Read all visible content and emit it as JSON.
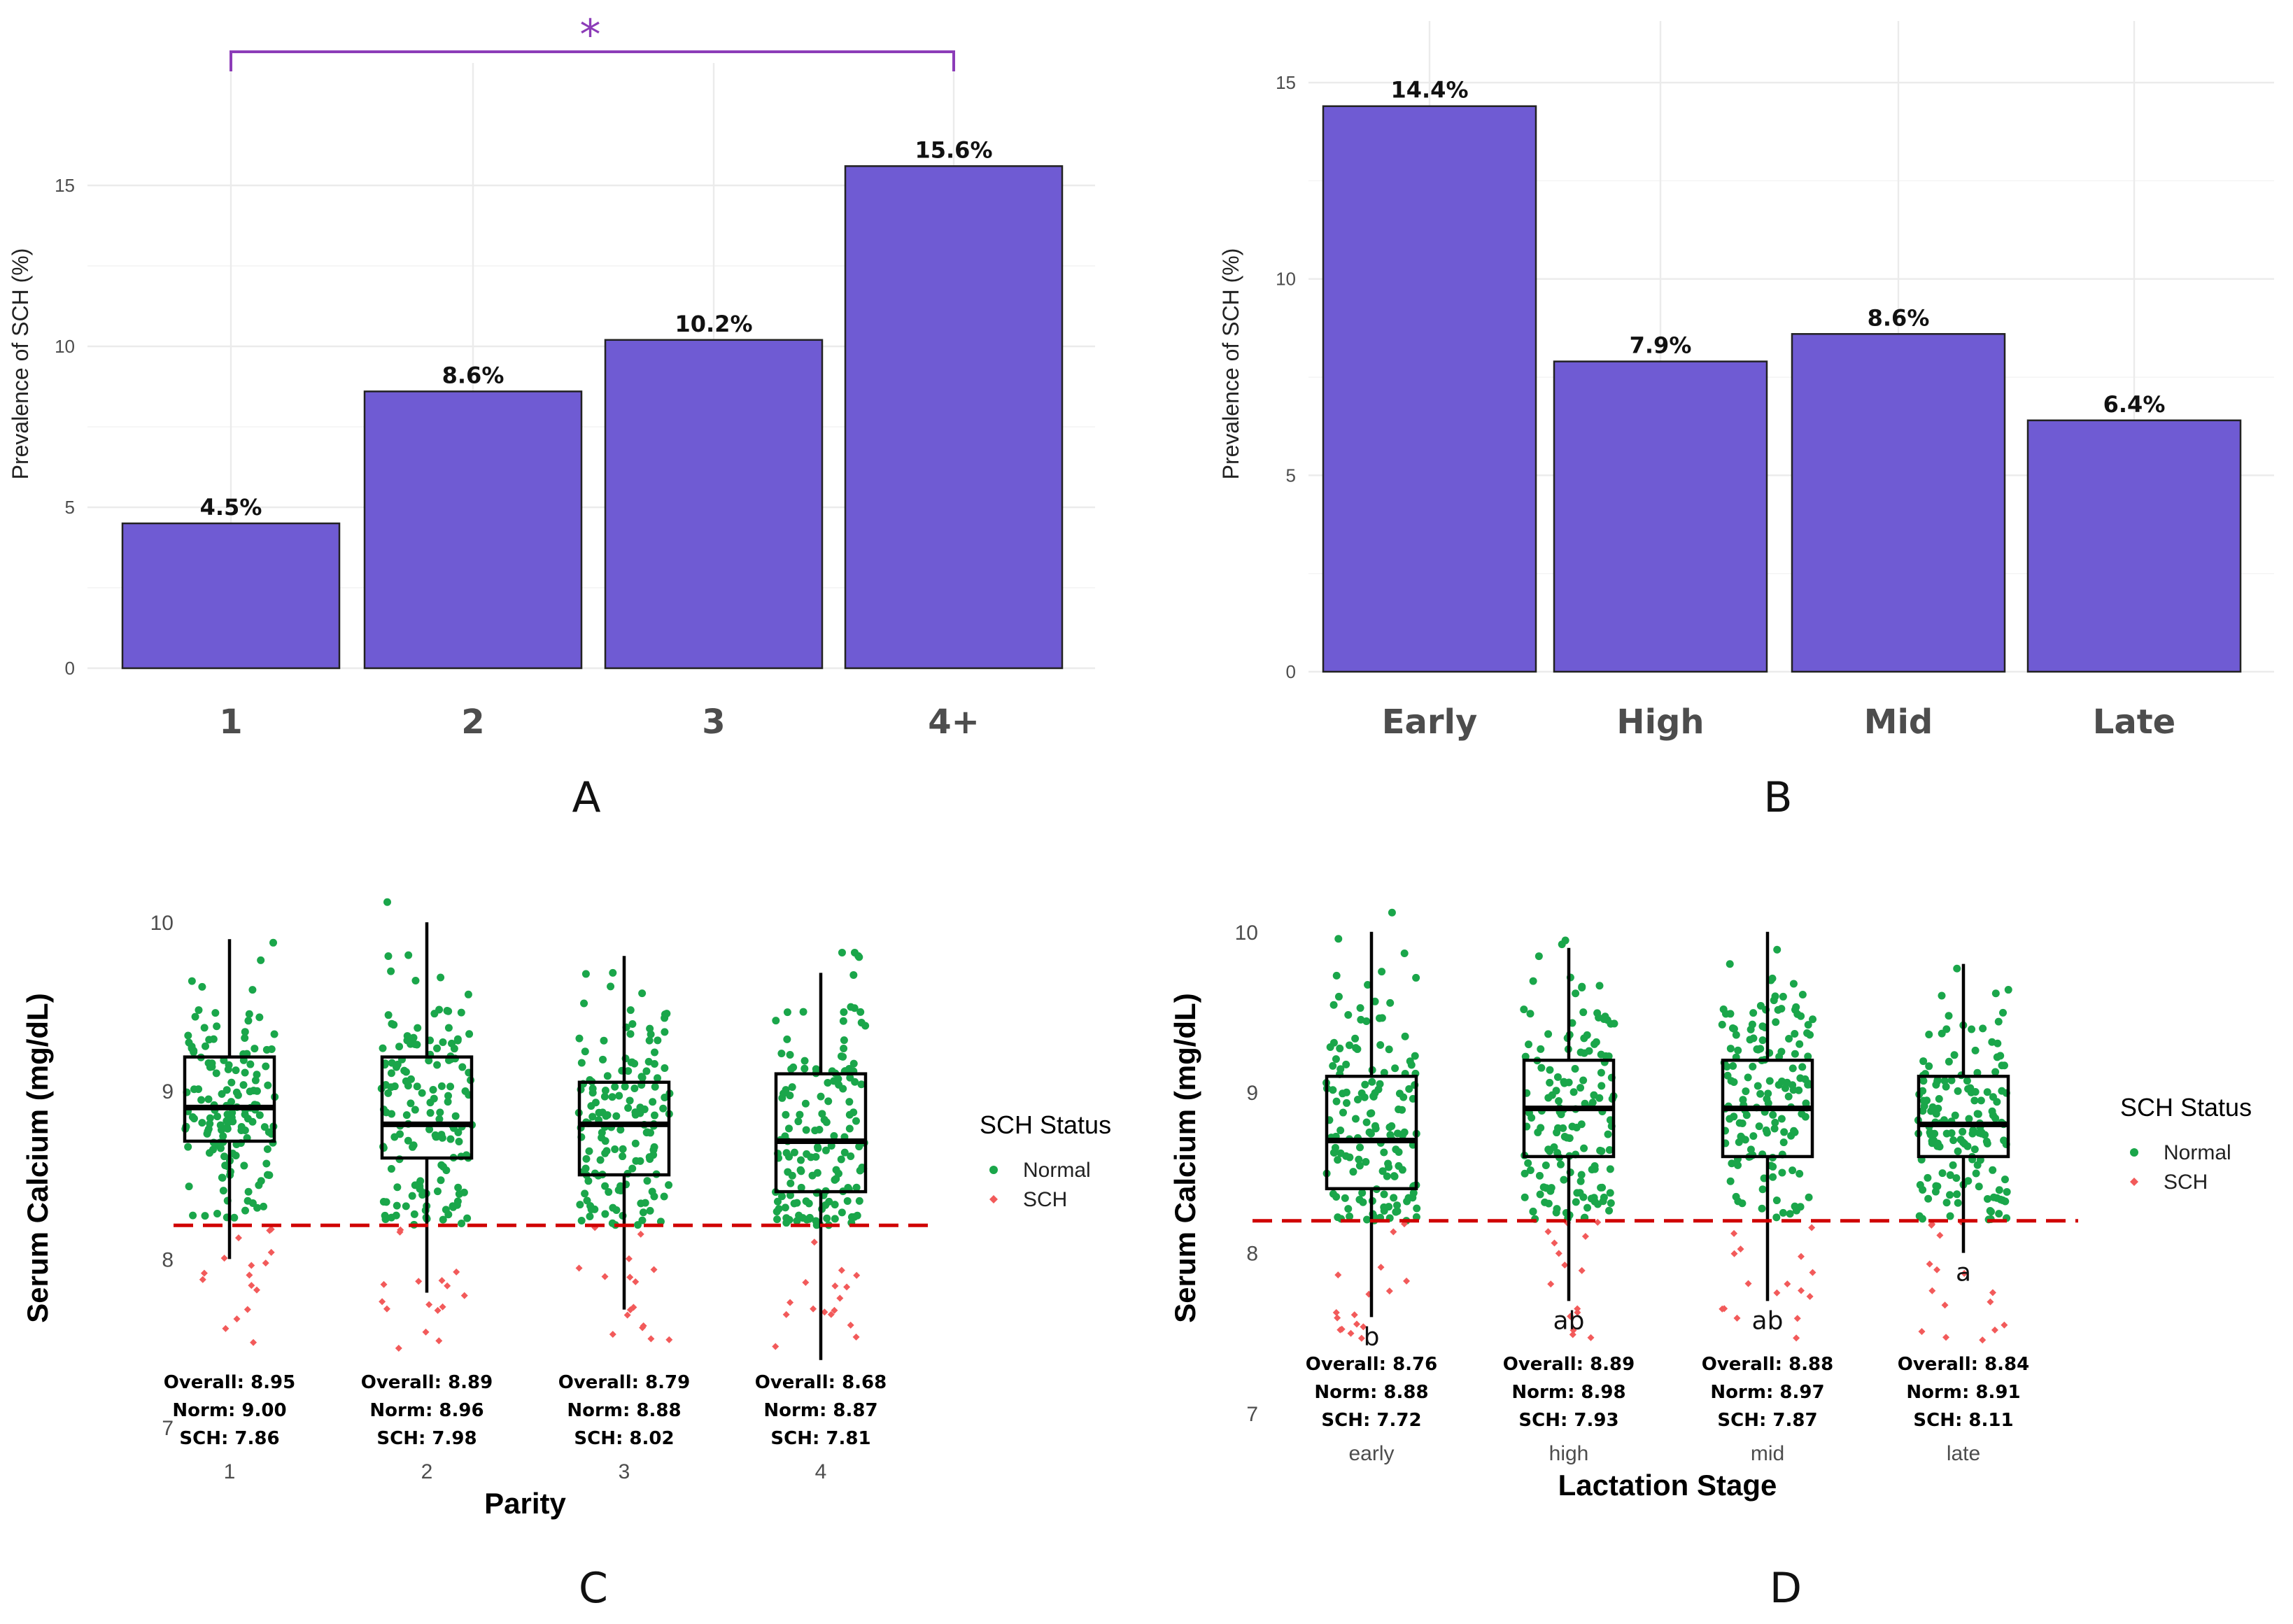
{
  "chart_data": [
    {
      "panel": "A",
      "type": "bar",
      "title": "",
      "xlabel": "",
      "ylabel": "Prevalence of SCH (%)",
      "categories": [
        "1",
        "2",
        "3",
        "4+"
      ],
      "values": [
        4.5,
        8.6,
        10.2,
        15.6
      ],
      "value_labels": [
        "4.5%",
        "8.6%",
        "10.2%",
        "15.6%"
      ],
      "ylim": [
        0,
        17.5
      ],
      "yticks": [
        0,
        5,
        10,
        15
      ],
      "color": "#6f5bd3",
      "annotations": [
        {
          "type": "significance-bracket",
          "from": "1",
          "to": "4+",
          "label": "*",
          "color": "#8c3cb8"
        }
      ]
    },
    {
      "panel": "B",
      "type": "bar",
      "title": "",
      "xlabel": "",
      "ylabel": "Prevalence of SCH (%)",
      "categories": [
        "Early",
        "High",
        "Mid",
        "Late"
      ],
      "values": [
        14.4,
        7.9,
        8.6,
        6.4
      ],
      "value_labels": [
        "14.4%",
        "7.9%",
        "8.6%",
        "6.4%"
      ],
      "ylim": [
        0,
        15.5
      ],
      "yticks": [
        0,
        5,
        10,
        15
      ],
      "color": "#6f5bd3"
    },
    {
      "panel": "C",
      "type": "box",
      "xlabel": "Parity",
      "ylabel": "Serum Calcium (mg/dL)",
      "categories": [
        "1",
        "2",
        "3",
        "4"
      ],
      "ylim": [
        7,
        10.2
      ],
      "yticks": [
        7,
        8,
        9,
        10
      ],
      "threshold": 8.2,
      "boxes": [
        {
          "q1": 8.7,
          "median": 8.9,
          "q3": 9.2,
          "lower": 8.0,
          "upper": 9.9
        },
        {
          "q1": 8.6,
          "median": 8.8,
          "q3": 9.2,
          "lower": 7.8,
          "upper": 10.0
        },
        {
          "q1": 8.5,
          "median": 8.8,
          "q3": 9.05,
          "lower": 7.7,
          "upper": 9.8
        },
        {
          "q1": 8.4,
          "median": 8.7,
          "q3": 9.1,
          "lower": 7.4,
          "upper": 9.7
        }
      ],
      "summary": [
        {
          "overall": "Overall: 8.95",
          "norm": "Norm: 9.00",
          "sch": "SCH: 7.86"
        },
        {
          "overall": "Overall: 8.89",
          "norm": "Norm: 8.96",
          "sch": "SCH: 7.98"
        },
        {
          "overall": "Overall: 8.79",
          "norm": "Norm: 8.88",
          "sch": "SCH: 8.02"
        },
        {
          "overall": "Overall: 8.68",
          "norm": "Norm: 8.87",
          "sch": "SCH: 7.81"
        }
      ],
      "legend": {
        "title": "SCH Status",
        "items": [
          "Normal",
          "SCH"
        ],
        "colors": [
          "#1aa64a",
          "#f25a5a"
        ],
        "placement": "right"
      }
    },
    {
      "panel": "D",
      "type": "box",
      "xlabel": "Lactation Stage",
      "ylabel": "Serum Calcium (mg/dL)",
      "categories": [
        "early",
        "high",
        "mid",
        "late"
      ],
      "ylim": [
        7,
        10.4
      ],
      "yticks": [
        7,
        8,
        9,
        10
      ],
      "threshold": 8.2,
      "boxes": [
        {
          "q1": 8.4,
          "median": 8.7,
          "q3": 9.1,
          "lower": 7.6,
          "upper": 10.0
        },
        {
          "q1": 8.6,
          "median": 8.9,
          "q3": 9.2,
          "lower": 7.7,
          "upper": 9.9
        },
        {
          "q1": 8.6,
          "median": 8.9,
          "q3": 9.2,
          "lower": 7.7,
          "upper": 10.0
        },
        {
          "q1": 8.6,
          "median": 8.8,
          "q3": 9.1,
          "lower": 8.0,
          "upper": 9.8
        }
      ],
      "group_letters": [
        "b",
        "ab",
        "ab",
        "a"
      ],
      "summary": [
        {
          "overall": "Overall: 8.76",
          "norm": "Norm: 8.88",
          "sch": "SCH: 7.72"
        },
        {
          "overall": "Overall: 8.89",
          "norm": "Norm: 8.98",
          "sch": "SCH: 7.93"
        },
        {
          "overall": "Overall: 8.88",
          "norm": "Norm: 8.97",
          "sch": "SCH: 7.87"
        },
        {
          "overall": "Overall: 8.84",
          "norm": "Norm: 8.91",
          "sch": "SCH: 8.11"
        }
      ],
      "legend": {
        "title": "SCH Status",
        "items": [
          "Normal",
          "SCH"
        ],
        "colors": [
          "#1aa64a",
          "#f25a5a"
        ],
        "placement": "right"
      }
    }
  ]
}
